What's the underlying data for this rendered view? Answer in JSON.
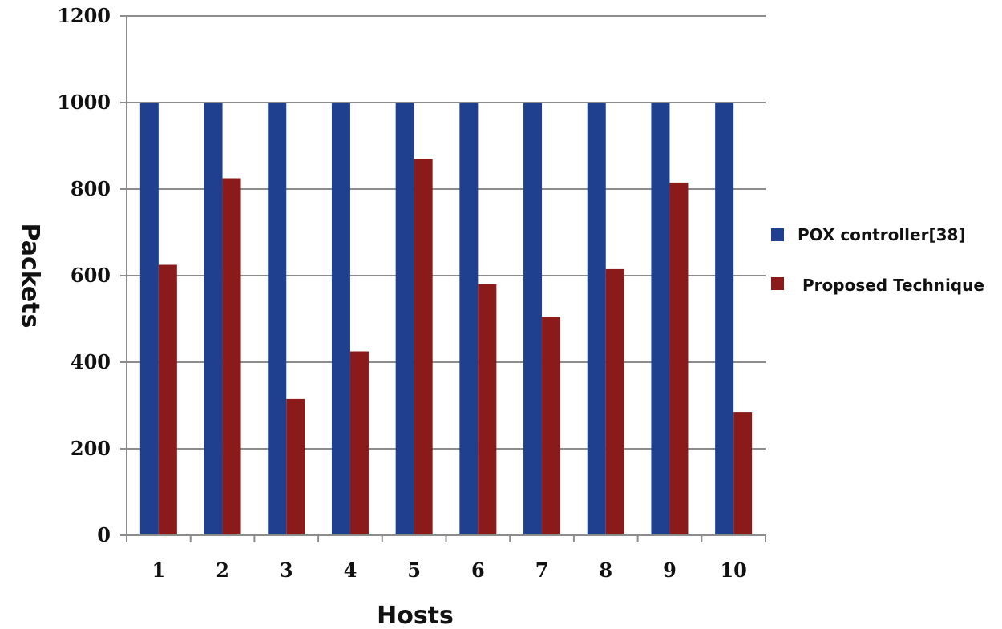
{
  "chart_data": {
    "type": "bar",
    "title": "",
    "xlabel": "Hosts",
    "ylabel": "Packets",
    "categories": [
      "1",
      "2",
      "3",
      "4",
      "5",
      "6",
      "7",
      "8",
      "9",
      "10"
    ],
    "ylim": [
      0,
      1200
    ],
    "yticks": [
      0,
      200,
      400,
      600,
      800,
      1000,
      1200
    ],
    "grid": true,
    "legend_position": "right",
    "series": [
      {
        "name": "POX controller[38]",
        "color": "#1f3f8f",
        "values": [
          1000,
          1000,
          1000,
          1000,
          1000,
          1000,
          1000,
          1000,
          1000,
          1000
        ]
      },
      {
        "name": "Proposed Technique",
        "color": "#8b1a1a",
        "values": [
          625,
          825,
          315,
          425,
          870,
          580,
          505,
          615,
          815,
          285
        ]
      }
    ]
  }
}
